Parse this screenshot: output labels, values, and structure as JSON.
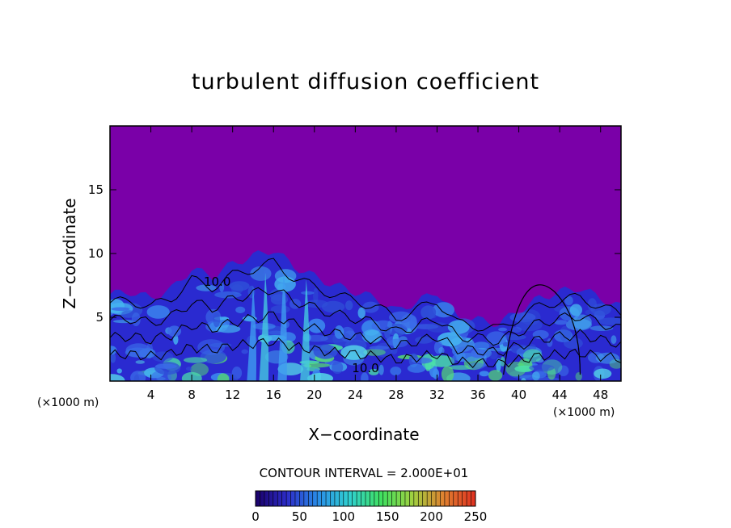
{
  "chart_data": {
    "type": "heatmap",
    "title": "turbulent diffusion coefficient",
    "xlabel": "X−coordinate",
    "ylabel": "Z−coordinate",
    "x_unit": "(×1000 m)",
    "y_unit": "(×1000 m)",
    "xlim": [
      0,
      50
    ],
    "ylim": [
      0,
      20
    ],
    "x_ticks": [
      4,
      8,
      12,
      16,
      20,
      24,
      28,
      32,
      36,
      40,
      44,
      48
    ],
    "y_ticks": [
      5,
      10,
      15
    ],
    "contour_interval_text": "CONTOUR INTERVAL = 2.000E+01",
    "contour_labels": [
      {
        "text": "10.0",
        "x": 10.5,
        "z": 7.8
      },
      {
        "text": "10.0",
        "x": 25,
        "z": 1.0
      }
    ],
    "colorbar": {
      "ticks": [
        0,
        50,
        100,
        150,
        200,
        250
      ],
      "range": [
        0,
        250
      ],
      "colors": [
        "#1a0068",
        "#2c2cc8",
        "#2a8ee8",
        "#30d0d0",
        "#40e060",
        "#a0d040",
        "#e08030",
        "#e03020"
      ]
    },
    "field_description": {
      "background_color": "#7a00a8",
      "turbulent_layer_top_z": [
        6.8,
        7.0,
        6.5,
        7.2,
        8.8,
        8.2,
        9.2,
        9.8,
        10.3,
        9.0,
        8.2,
        7.5,
        7.0,
        6.5,
        5.5,
        6.2,
        7.0,
        5.0,
        4.8,
        4.5,
        5.5,
        6.5,
        7.0,
        7.3,
        6.5,
        5.8
      ],
      "sample_x": [
        0,
        2,
        4,
        6,
        8,
        10,
        12,
        14,
        16,
        18,
        20,
        22,
        24,
        26,
        28,
        30,
        32,
        34,
        36,
        38,
        40,
        42,
        44,
        46,
        48,
        50
      ]
    }
  }
}
